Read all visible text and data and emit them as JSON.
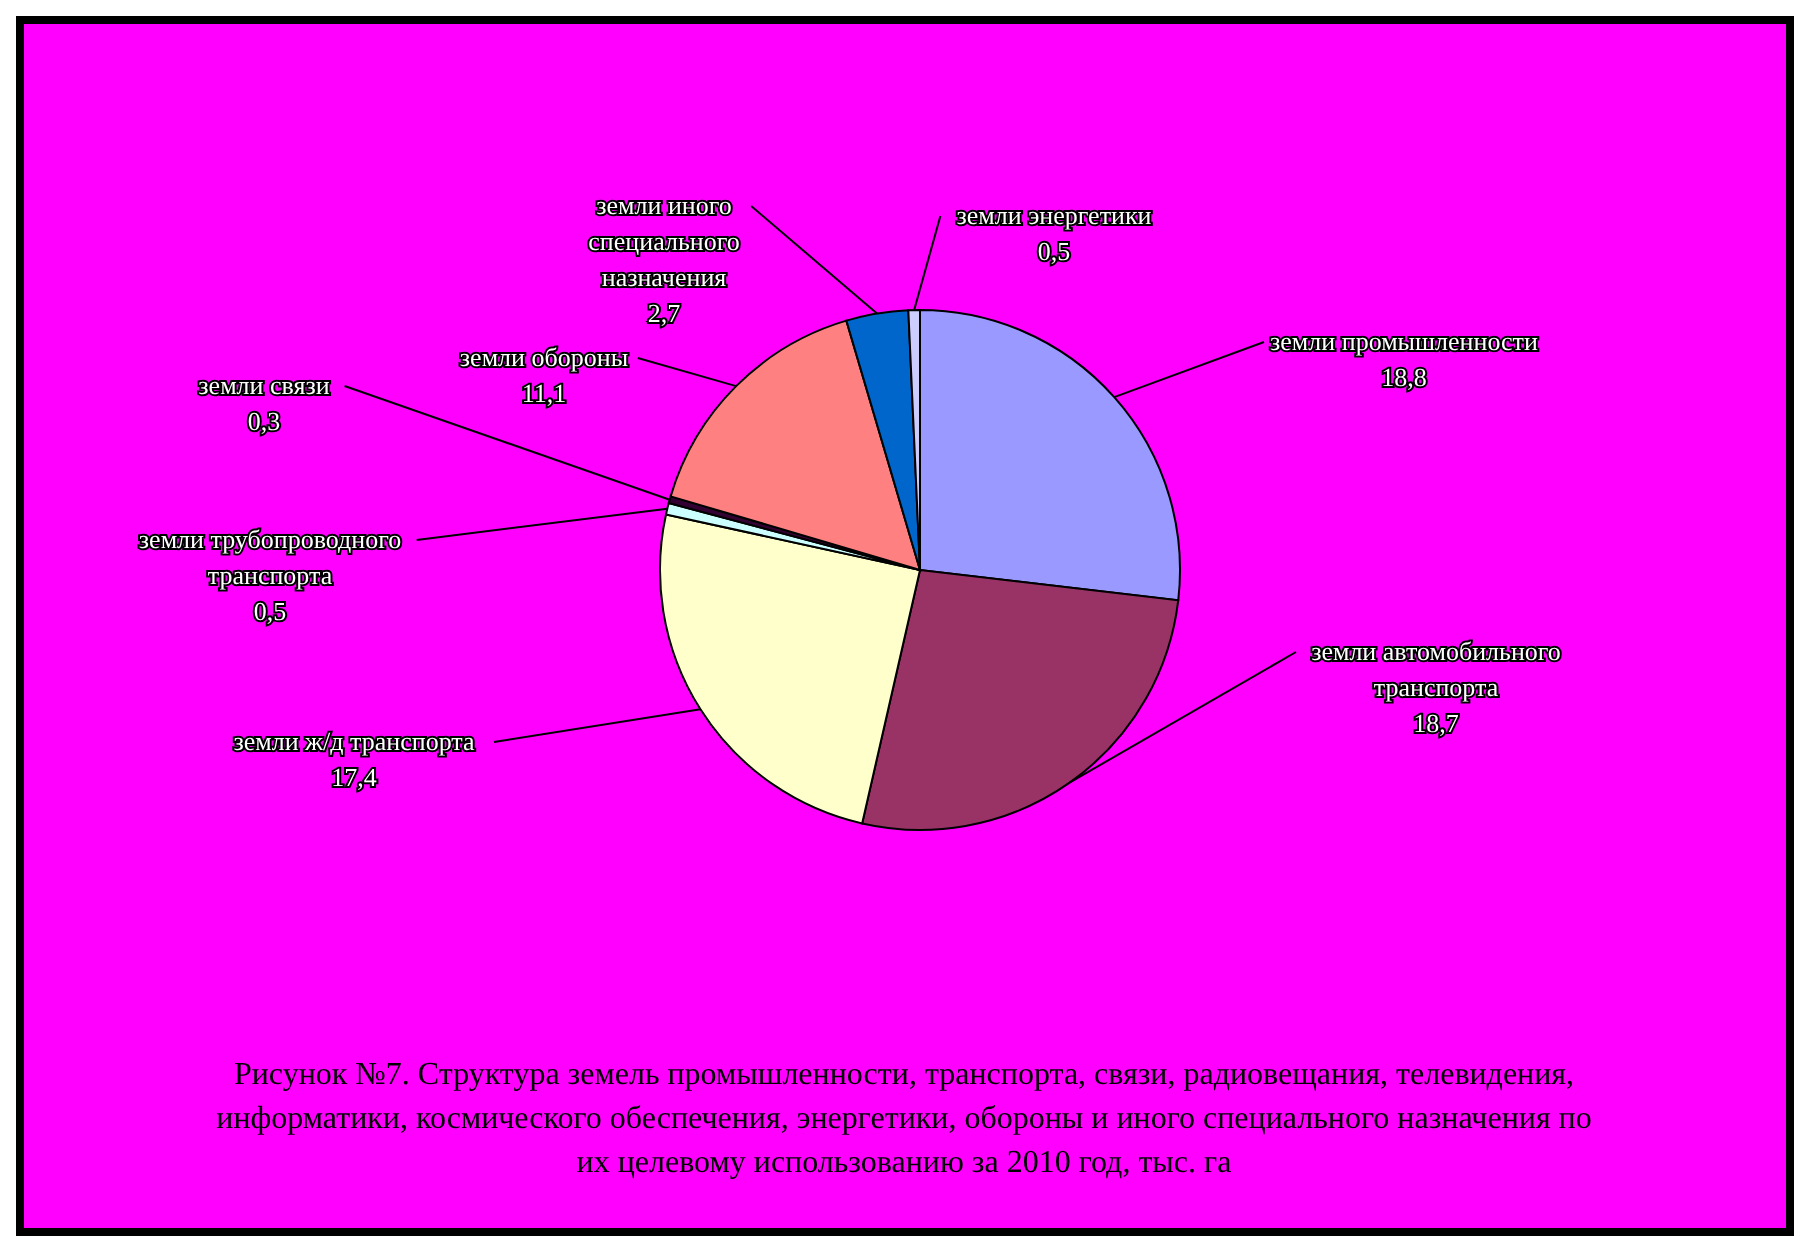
{
  "chart_data": {
    "type": "pie",
    "title": "Рисунок №7. Структура земель промышленности, транспорта, связи, радиовещания, телевидения, информатики, космического обеспечения, энергетики, обороны и иного специального назначения по их целевому использованию за 2010 год, тыс. га",
    "categories": [
      "земли промышленности",
      "земли автомобильного транспорта",
      "земли ж/д транспорта",
      "земли трубопроводного транспорта",
      "земли связи",
      "земли обороны",
      "земли иного специального назначения",
      "земли энергетики"
    ],
    "values": [
      18.8,
      18.7,
      17.4,
      0.5,
      0.3,
      11.1,
      2.7,
      0.5
    ],
    "colors": [
      "#9999ff",
      "#993366",
      "#ffffcc",
      "#ccffff",
      "#330033",
      "#ff8080",
      "#0066cc",
      "#ccccff"
    ],
    "value_labels": [
      "18,8",
      "18,7",
      "17,4",
      "0,5",
      "0,3",
      "11,1",
      "2,7",
      "0,5"
    ],
    "legend": false
  }
}
